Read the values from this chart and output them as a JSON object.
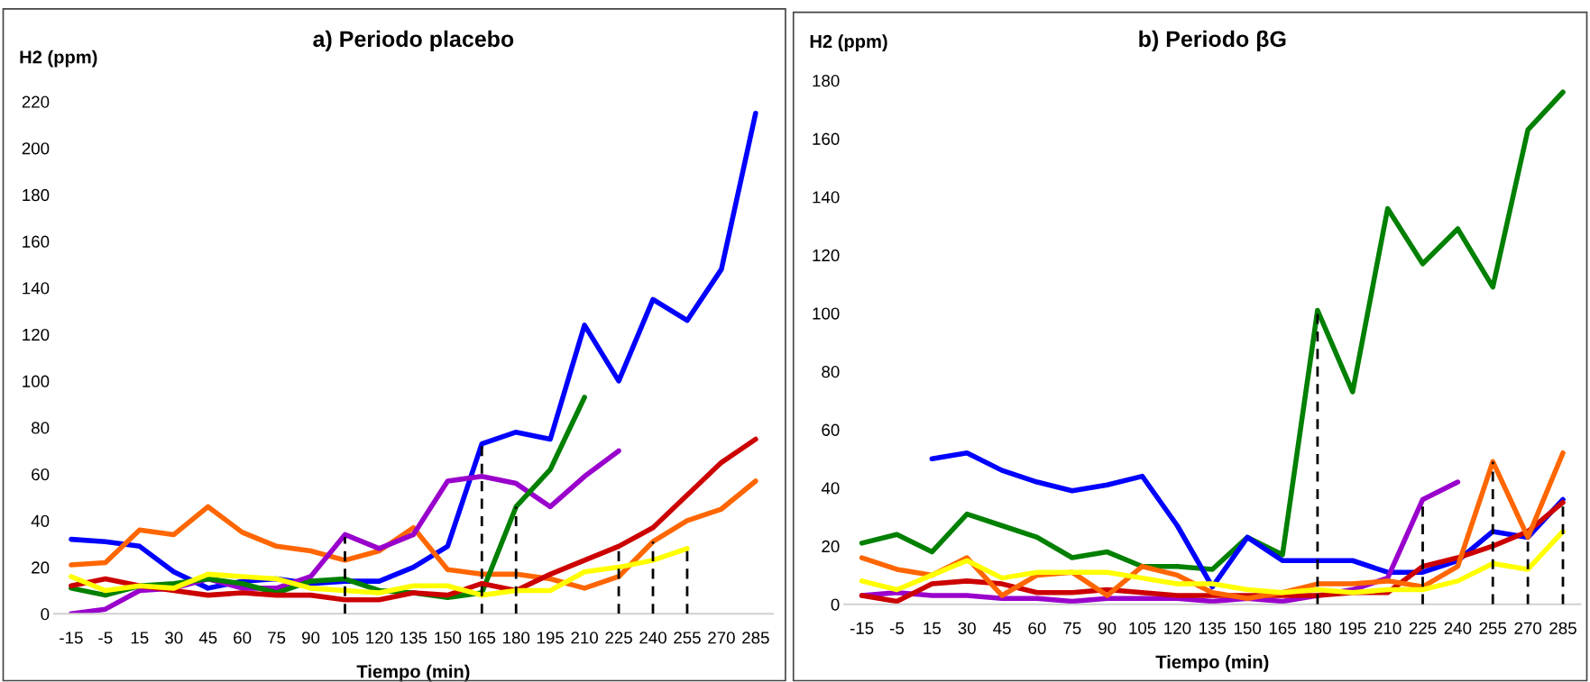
{
  "chart_data": [
    {
      "type": "line",
      "title": "a) Periodo placebo",
      "xlabel": "Tiempo (min)",
      "ylabel": "H2 (ppm)",
      "categories": [
        "-15",
        "-5",
        "15",
        "30",
        "45",
        "60",
        "75",
        "90",
        "105",
        "120",
        "135",
        "150",
        "165",
        "180",
        "195",
        "210",
        "225",
        "240",
        "255",
        "270",
        "285"
      ],
      "ylim": [
        0,
        220
      ],
      "yticks": [
        0,
        20,
        40,
        60,
        80,
        100,
        120,
        140,
        160,
        180,
        200,
        220
      ],
      "grid": false,
      "marker": "none",
      "series": [
        {
          "color": "#0000ff",
          "values": [
            32,
            31,
            29,
            18,
            11,
            14,
            15,
            13,
            14,
            14,
            20,
            29,
            73,
            78,
            75,
            124,
            100,
            135,
            126,
            148,
            215
          ]
        },
        {
          "color": "#ff6600",
          "values": [
            21,
            22,
            36,
            34,
            46,
            35,
            29,
            27,
            23,
            27,
            37,
            19,
            17,
            17,
            15,
            11,
            16,
            31,
            40,
            45,
            57
          ]
        },
        {
          "color": "#9900cc",
          "values": [
            0,
            2,
            10,
            11,
            15,
            11,
            11,
            16,
            34,
            28,
            34,
            57,
            59,
            56,
            46,
            59,
            70,
            null,
            null,
            null,
            null
          ]
        },
        {
          "color": "#008000",
          "values": [
            11,
            8,
            12,
            13,
            15,
            13,
            9,
            14,
            15,
            10,
            9,
            7,
            9,
            46,
            62,
            93,
            null,
            null,
            null,
            null,
            null
          ]
        },
        {
          "color": "#cc0000",
          "values": [
            12,
            15,
            12,
            10,
            8,
            9,
            8,
            8,
            6,
            6,
            9,
            8,
            13,
            10,
            17,
            23,
            29,
            37,
            51,
            65,
            75
          ]
        },
        {
          "color": "#ffff00",
          "values": [
            16,
            10,
            12,
            11,
            17,
            16,
            15,
            11,
            10,
            9,
            12,
            12,
            8,
            10,
            10,
            18,
            20,
            23,
            28,
            null,
            null
          ]
        },
        {
          "color": "#000000",
          "line_style": "dashed",
          "x": [
            "105",
            "105"
          ],
          "values": [
            0,
            33
          ]
        },
        {
          "color": "#000000",
          "line_style": "dashed",
          "x": [
            "165",
            "165"
          ],
          "values": [
            0,
            73
          ]
        },
        {
          "color": "#000000",
          "line_style": "dashed",
          "x": [
            "180",
            "180"
          ],
          "values": [
            0,
            46
          ]
        },
        {
          "color": "#000000",
          "line_style": "dashed",
          "x": [
            "225",
            "225"
          ],
          "values": [
            0,
            28
          ]
        },
        {
          "color": "#000000",
          "line_style": "dashed",
          "x": [
            "240",
            "240"
          ],
          "values": [
            0,
            31
          ]
        },
        {
          "color": "#000000",
          "line_style": "dashed",
          "x": [
            "255",
            "255"
          ],
          "values": [
            0,
            28
          ]
        }
      ]
    },
    {
      "type": "line",
      "title": "b) Periodo βG",
      "xlabel": "Tiempo (min)",
      "ylabel": "H2 (ppm)",
      "categories": [
        "-15",
        "-5",
        "15",
        "30",
        "45",
        "60",
        "75",
        "90",
        "105",
        "120",
        "135",
        "150",
        "165",
        "180",
        "195",
        "210",
        "225",
        "240",
        "255",
        "270",
        "285"
      ],
      "ylim": [
        0,
        180
      ],
      "yticks": [
        0,
        20,
        40,
        60,
        80,
        100,
        120,
        140,
        160,
        180
      ],
      "grid": false,
      "marker": "none",
      "series": [
        {
          "color": "#008000",
          "values": [
            21,
            24,
            18,
            31,
            27,
            23,
            16,
            18,
            13,
            13,
            12,
            23,
            17,
            101,
            73,
            136,
            117,
            129,
            109,
            163,
            176
          ]
        },
        {
          "color": "#0000ff",
          "values": [
            null,
            null,
            50,
            52,
            46,
            42,
            39,
            41,
            44,
            27,
            6,
            23,
            15,
            15,
            15,
            11,
            11,
            15,
            25,
            23,
            36
          ]
        },
        {
          "color": "#9900cc",
          "values": [
            3,
            4,
            3,
            3,
            2,
            2,
            1,
            2,
            2,
            2,
            1,
            2,
            1,
            3,
            5,
            9,
            36,
            42,
            null,
            null,
            null
          ]
        },
        {
          "color": "#cc0000",
          "values": [
            3,
            1,
            7,
            8,
            7,
            4,
            4,
            5,
            4,
            3,
            3,
            3,
            3,
            3,
            4,
            4,
            13,
            16,
            20,
            25,
            35
          ]
        },
        {
          "color": "#ff6600",
          "values": [
            16,
            12,
            10,
            16,
            3,
            10,
            11,
            3,
            13,
            10,
            4,
            2,
            4,
            7,
            7,
            8,
            6,
            13,
            49,
            23,
            52
          ]
        },
        {
          "color": "#ffff00",
          "values": [
            8,
            5,
            10,
            15,
            9,
            11,
            11,
            11,
            9,
            7,
            7,
            5,
            4,
            5,
            4,
            5,
            5,
            8,
            14,
            12,
            25
          ]
        },
        {
          "color": "#000000",
          "line_style": "dashed",
          "x": [
            "180",
            "180"
          ],
          "values": [
            0,
            100
          ]
        },
        {
          "color": "#000000",
          "line_style": "dashed",
          "x": [
            "225",
            "225"
          ],
          "values": [
            0,
            36
          ]
        },
        {
          "color": "#000000",
          "line_style": "dashed",
          "x": [
            "255",
            "255"
          ],
          "values": [
            0,
            49
          ]
        },
        {
          "color": "#000000",
          "line_style": "dashed",
          "x": [
            "270",
            "270"
          ],
          "values": [
            0,
            23
          ]
        },
        {
          "color": "#000000",
          "line_style": "dashed",
          "x": [
            "285",
            "285"
          ],
          "values": [
            0,
            35
          ]
        }
      ]
    }
  ]
}
